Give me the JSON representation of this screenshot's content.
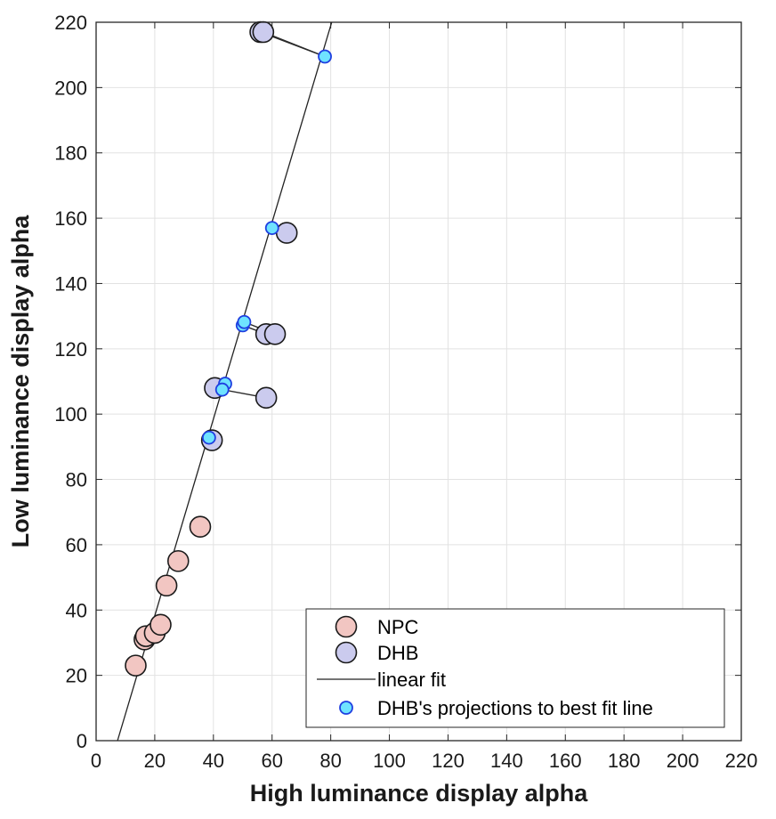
{
  "chart_data": {
    "type": "scatter",
    "xlabel": "High luminance display alpha",
    "ylabel": "Low luminance display alpha",
    "xlim": [
      0,
      220
    ],
    "ylim": [
      0,
      220
    ],
    "xticks": [
      0,
      20,
      40,
      60,
      80,
      100,
      120,
      140,
      160,
      180,
      200,
      220
    ],
    "yticks": [
      0,
      20,
      40,
      60,
      80,
      100,
      120,
      140,
      160,
      180,
      200,
      220
    ],
    "grid": true,
    "legend_position": "bottom-right",
    "colors": {
      "npc": "#f2c6c2",
      "dhb": "#cbcbee",
      "projection": "#6fe3ff",
      "projection_edge": "#1f3fe0",
      "fit_line": "#222222"
    },
    "fit_line": {
      "x": [
        7.3,
        81
      ],
      "y": [
        0,
        222
      ]
    },
    "series": [
      {
        "name": "NPC",
        "points": [
          {
            "x": 13.5,
            "y": 23
          },
          {
            "x": 16.5,
            "y": 31
          },
          {
            "x": 17,
            "y": 32
          },
          {
            "x": 20,
            "y": 33
          },
          {
            "x": 22,
            "y": 35.5
          },
          {
            "x": 24,
            "y": 47.5
          },
          {
            "x": 28,
            "y": 55
          },
          {
            "x": 35.5,
            "y": 65.5
          }
        ]
      },
      {
        "name": "DHB",
        "points": [
          {
            "x": 39.5,
            "y": 92
          },
          {
            "x": 40.5,
            "y": 108
          },
          {
            "x": 58,
            "y": 105
          },
          {
            "x": 58,
            "y": 124.5
          },
          {
            "x": 61,
            "y": 124.5
          },
          {
            "x": 65,
            "y": 155.5
          },
          {
            "x": 56,
            "y": 217
          },
          {
            "x": 57,
            "y": 217
          }
        ]
      },
      {
        "name": "linear fit"
      },
      {
        "name": "DHB's projections to best fit line",
        "points": [
          {
            "x": 38.5,
            "y": 92.8
          },
          {
            "x": 44,
            "y": 109.3
          },
          {
            "x": 43,
            "y": 107.5
          },
          {
            "x": 50,
            "y": 127.2
          },
          {
            "x": 50.5,
            "y": 128.2
          },
          {
            "x": 60,
            "y": 157
          },
          {
            "x": 78,
            "y": 209.5
          }
        ]
      }
    ],
    "connectors": [
      {
        "from": [
          39.5,
          92
        ],
        "to": [
          38.5,
          92.8
        ]
      },
      {
        "from": [
          40.5,
          108
        ],
        "to": [
          44,
          109.3
        ]
      },
      {
        "from": [
          58,
          105
        ],
        "to": [
          43,
          107.5
        ]
      },
      {
        "from": [
          58,
          124.5
        ],
        "to": [
          50,
          127.2
        ]
      },
      {
        "from": [
          61,
          124.5
        ],
        "to": [
          50.5,
          128.2
        ]
      },
      {
        "from": [
          65,
          155.5
        ],
        "to": [
          60,
          157
        ]
      },
      {
        "from": [
          56,
          217
        ],
        "to": [
          78,
          209.5
        ]
      },
      {
        "from": [
          57,
          217
        ],
        "to": [
          78,
          209.5
        ]
      }
    ]
  }
}
